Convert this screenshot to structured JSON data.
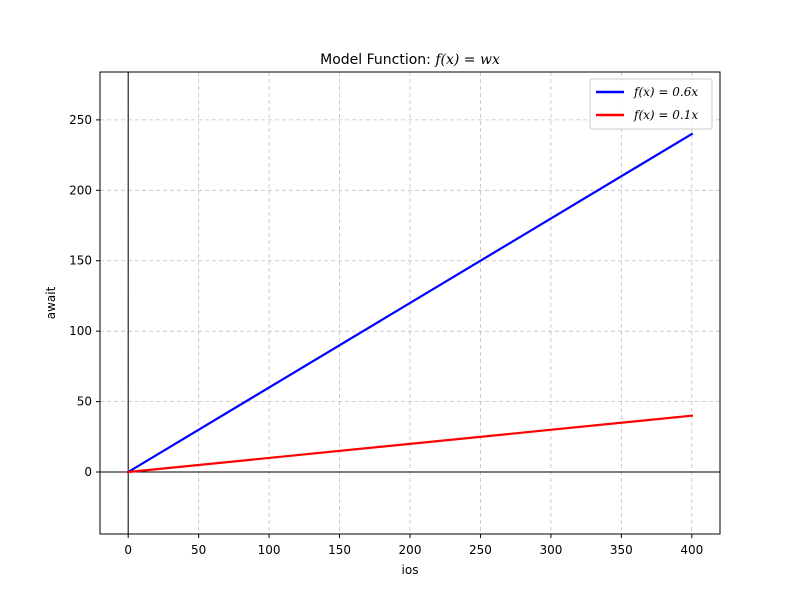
{
  "chart_data": {
    "type": "line",
    "title_prefix": "Model Function: ",
    "title_math": "f(x) = wx",
    "xlabel": "ios",
    "ylabel": "await",
    "xlim": [
      -20,
      420
    ],
    "ylim": [
      -44,
      284
    ],
    "xticks": [
      0,
      50,
      100,
      150,
      200,
      250,
      300,
      350,
      400
    ],
    "yticks": [
      0,
      50,
      100,
      150,
      200,
      250
    ],
    "grid": true,
    "reference_lines": {
      "horizontal_y": 0,
      "vertical_x": 0
    },
    "legend_position": "top-right",
    "series": [
      {
        "name": "f(x) = 0.6x",
        "color": "#0000ff",
        "x": [
          0,
          400
        ],
        "y": [
          0,
          240
        ]
      },
      {
        "name": "f(x) = 0.1x",
        "color": "#ff0000",
        "x": [
          0,
          400
        ],
        "y": [
          0,
          40
        ]
      }
    ]
  }
}
